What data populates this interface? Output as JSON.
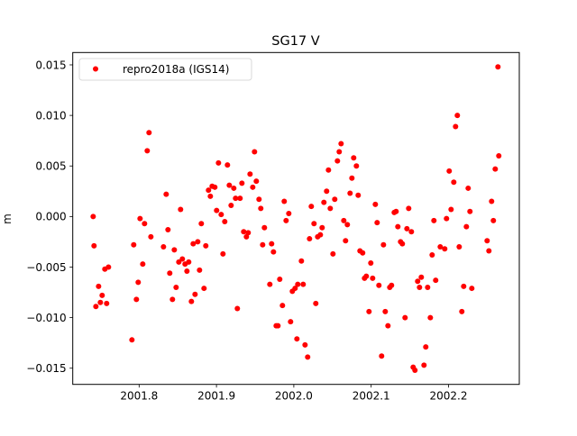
{
  "chart_data": {
    "type": "scatter",
    "title": "SG17 V",
    "xlabel": "",
    "ylabel": "m",
    "xlim": [
      2001.7142,
      2002.2915
    ],
    "ylim": [
      -0.0166,
      0.01622
    ],
    "xticks": [
      2001.8,
      2001.9,
      2002.0,
      2002.1,
      2002.2
    ],
    "xtick_labels": [
      "2001.8",
      "2001.9",
      "2002.0",
      "2002.1",
      "2002.2"
    ],
    "yticks": [
      0.015,
      0.01,
      0.005,
      0.0,
      -0.005,
      -0.01,
      -0.015
    ],
    "ytick_labels": [
      "0.015",
      "0.010",
      "0.005",
      "0.000",
      "−0.005",
      "−0.010",
      "−0.015"
    ],
    "grid": false,
    "legend_position": "top-left",
    "series": [
      {
        "name": "repro2018a (IGS14)",
        "color": "#ff0000",
        "marker": "circle",
        "x": [
          2001.7406,
          2001.7417,
          2001.7476,
          2001.7441,
          2001.7522,
          2001.7499,
          2001.758,
          2001.7557,
          2001.7604,
          2001.7907,
          2001.793,
          2001.7965,
          2001.7988,
          2001.8012,
          2001.8047,
          2001.807,
          2001.8105,
          2001.8128,
          2001.8152,
          2001.8315,
          2001.835,
          2001.8373,
          2001.8396,
          2001.8431,
          2001.8455,
          2001.8478,
          2001.8513,
          2001.8536,
          2001.8559,
          2001.8594,
          2001.8618,
          2001.8641,
          2001.8676,
          2001.8699,
          2001.8723,
          2001.8758,
          2001.8781,
          2001.8804,
          2001.8839,
          2001.8862,
          2001.8897,
          2001.8921,
          2001.8944,
          2001.8979,
          2001.9002,
          2001.9026,
          2001.9061,
          2001.9084,
          2001.9107,
          2001.9142,
          2001.9166,
          2001.9189,
          2001.9224,
          2001.9247,
          2001.927,
          2001.9305,
          2001.9329,
          2001.9352,
          2001.9387,
          2001.941,
          2001.9434,
          2001.9469,
          2001.9492,
          2001.9515,
          2001.955,
          2001.9573,
          2001.9597,
          2001.962,
          2001.969,
          2001.9713,
          2001.9737,
          2001.9772,
          2001.9795,
          2001.9818,
          2001.9853,
          2001.9876,
          2001.99,
          2001.9935,
          2001.9958,
          2001.9981,
          2002.0016,
          2002.004,
          2002.0051,
          2002.0121,
          2002.0098,
          2002.0145,
          2002.0179,
          2002.0203,
          2002.0226,
          2002.0261,
          2002.0284,
          2002.0308,
          2002.0343,
          2002.0366,
          2002.0389,
          2002.0424,
          2002.0448,
          2002.0471,
          2002.0506,
          2002.0529,
          2002.0564,
          2002.0587,
          2002.0611,
          2002.0646,
          2002.0669,
          2002.0692,
          2002.0727,
          2002.0751,
          2002.0774,
          2002.0809,
          2002.0832,
          2002.0855,
          2002.089,
          2002.0914,
          2002.0937,
          2002.0972,
          2002.0995,
          2002.1019,
          2002.1054,
          2002.1077,
          2002.11,
          2002.1135,
          2002.1159,
          2002.1182,
          2002.1217,
          2002.124,
          2002.1263,
          2002.1298,
          2002.1322,
          2002.1345,
          2002.138,
          2002.1403,
          2002.1438,
          2002.1462,
          2002.1485,
          2002.152,
          2002.1543,
          2002.1566,
          2002.1601,
          2002.1625,
          2002.1648,
          2002.1683,
          2002.1706,
          2002.173,
          2002.1765,
          2002.1788,
          2002.1811,
          2002.1834,
          2002.1893,
          2002.1951,
          2002.1974,
          2002.2009,
          2002.2033,
          2002.2068,
          2002.2091,
          2002.2114,
          2002.2138,
          2002.2172,
          2002.2196,
          2002.2231,
          2002.2254,
          2002.2277,
          2002.2301,
          2002.2499,
          2002.2522,
          2002.2557,
          2002.258,
          2002.2604,
          2002.2639,
          2002.265
        ],
        "y": [
          0.0,
          -0.0029,
          -0.0069,
          -0.0089,
          -0.0078,
          -0.0085,
          -0.0086,
          -0.0052,
          -0.005,
          -0.0122,
          -0.0028,
          -0.0082,
          -0.0065,
          -0.0002,
          -0.0047,
          -0.0007,
          0.0065,
          0.0083,
          -0.002,
          -0.003,
          0.0022,
          -0.0013,
          -0.0056,
          -0.0082,
          -0.0033,
          -0.007,
          -0.0045,
          0.0007,
          -0.0042,
          -0.0047,
          -0.0054,
          -0.0045,
          -0.0084,
          -0.0027,
          -0.0077,
          -0.0025,
          -0.0053,
          -0.0007,
          -0.0071,
          -0.0029,
          0.0026,
          0.002,
          0.003,
          0.0029,
          0.0006,
          0.0053,
          0.0002,
          -0.0037,
          -0.0005,
          0.0051,
          0.0031,
          0.0011,
          0.0028,
          0.0018,
          -0.0091,
          0.0018,
          0.0033,
          -0.0015,
          -0.002,
          -0.0016,
          0.0042,
          0.0029,
          0.0064,
          0.0035,
          0.0017,
          0.0008,
          -0.0028,
          -0.0011,
          -0.0067,
          -0.0027,
          -0.0035,
          -0.0108,
          -0.0108,
          -0.0062,
          -0.0088,
          0.0015,
          -0.0004,
          0.0003,
          -0.0104,
          -0.0074,
          -0.0071,
          -0.0121,
          -0.0067,
          -0.0067,
          -0.0044,
          -0.0127,
          -0.0139,
          -0.0022,
          0.001,
          -0.0007,
          -0.0086,
          -0.002,
          -0.0018,
          -0.0011,
          0.0014,
          0.0025,
          0.0046,
          0.0008,
          -0.0037,
          0.0017,
          0.0055,
          0.0064,
          0.0072,
          -0.0004,
          -0.0024,
          -0.0008,
          0.0023,
          0.0038,
          0.0058,
          0.005,
          0.0021,
          -0.0034,
          -0.0036,
          -0.0061,
          -0.0059,
          -0.0094,
          -0.0046,
          -0.0061,
          0.0012,
          -0.0006,
          -0.0068,
          -0.0138,
          -0.0028,
          -0.0094,
          -0.0108,
          -0.007,
          -0.0068,
          0.0004,
          0.0005,
          -0.001,
          -0.0025,
          -0.0027,
          -0.01,
          -0.0012,
          0.0008,
          -0.0015,
          -0.0149,
          -0.0152,
          -0.0064,
          -0.007,
          -0.006,
          -0.0147,
          -0.0129,
          -0.007,
          -0.01,
          -0.0038,
          -0.0004,
          -0.0063,
          -0.003,
          -0.0032,
          -0.0002,
          0.0045,
          0.0007,
          0.0034,
          0.0089,
          0.01,
          -0.003,
          -0.0094,
          -0.0069,
          -0.001,
          0.0028,
          0.0005,
          -0.0071,
          -0.0024,
          -0.0034,
          0.0015,
          -0.0004,
          0.0047,
          0.0148,
          0.006
        ]
      }
    ]
  }
}
